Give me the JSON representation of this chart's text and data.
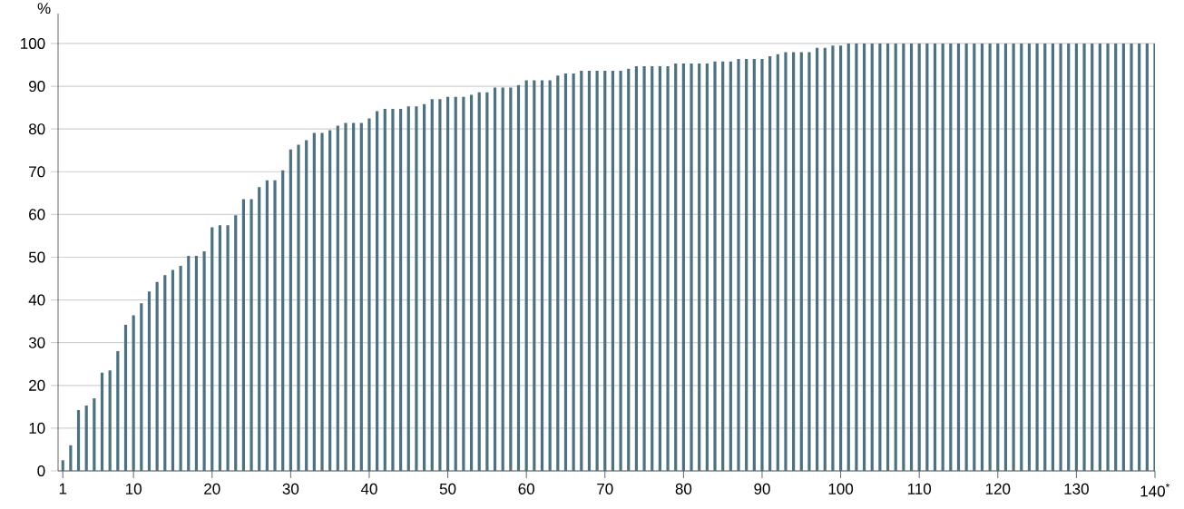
{
  "chart_data": {
    "type": "bar",
    "ylabel": "%",
    "color": "#4a7282",
    "grid": "y",
    "x": [
      1,
      2,
      3,
      4,
      5,
      6,
      7,
      8,
      9,
      10,
      11,
      12,
      13,
      14,
      15,
      16,
      17,
      18,
      19,
      20,
      21,
      22,
      23,
      24,
      25,
      26,
      27,
      28,
      29,
      30,
      31,
      32,
      33,
      34,
      35,
      36,
      37,
      38,
      39,
      40,
      41,
      42,
      43,
      44,
      45,
      46,
      47,
      48,
      49,
      50,
      51,
      52,
      53,
      54,
      55,
      56,
      57,
      58,
      59,
      60,
      61,
      62,
      63,
      64,
      65,
      66,
      67,
      68,
      69,
      70,
      71,
      72,
      73,
      74,
      75,
      76,
      77,
      78,
      79,
      80,
      81,
      82,
      83,
      84,
      85,
      86,
      87,
      88,
      89,
      90,
      91,
      92,
      93,
      94,
      95,
      96,
      97,
      98,
      99,
      100,
      101,
      102,
      103,
      104,
      105,
      106,
      107,
      108,
      109,
      110,
      111,
      112,
      113,
      114,
      115,
      116,
      117,
      118,
      119,
      120,
      121,
      122,
      123,
      124,
      125,
      126,
      127,
      128,
      129,
      130,
      131,
      132,
      133,
      134,
      135,
      136,
      137,
      138,
      139,
      140
    ],
    "values": [
      2.5,
      6,
      14.2,
      15.3,
      17,
      23,
      23.5,
      28,
      34.2,
      36.4,
      39.2,
      42,
      44.2,
      45.8,
      47,
      48,
      50.3,
      50.3,
      51.4,
      57,
      57.5,
      57.5,
      59.8,
      63.6,
      63.6,
      66.4,
      68,
      68,
      70.3,
      75.2,
      76.3,
      77.4,
      79.1,
      79.1,
      79.7,
      80.8,
      81.4,
      81.4,
      81.4,
      82.5,
      84.2,
      84.7,
      84.7,
      84.7,
      85.3,
      85.3,
      85.8,
      87,
      87,
      87.5,
      87.5,
      87.5,
      88,
      88.6,
      88.6,
      89.7,
      89.7,
      89.7,
      90.3,
      91.4,
      91.4,
      91.4,
      91.4,
      92.5,
      93,
      93,
      93.6,
      93.6,
      93.6,
      93.6,
      93.6,
      93.6,
      94.1,
      94.7,
      94.7,
      94.7,
      94.7,
      94.7,
      95.3,
      95.3,
      95.3,
      95.3,
      95.3,
      95.8,
      95.8,
      95.8,
      96.4,
      96.4,
      96.4,
      96.4,
      97,
      97.5,
      98,
      98,
      98,
      98,
      99,
      99,
      99.5,
      99.5,
      100,
      100,
      100,
      100,
      100,
      100,
      100,
      100,
      100,
      100,
      100,
      100,
      100,
      100,
      100,
      100,
      100,
      100,
      100,
      100,
      100,
      100,
      100,
      100,
      100,
      100,
      100,
      100,
      100,
      100,
      100,
      100,
      100,
      100,
      100,
      100,
      100,
      100,
      100,
      100
    ],
    "xlim": [
      0.4,
      140
    ],
    "ylim": [
      0,
      107
    ],
    "xticks": [
      1,
      10,
      20,
      30,
      40,
      50,
      60,
      70,
      80,
      90,
      100,
      110,
      120,
      130,
      {
        "value": 140,
        "label": "140$^{*}$"
      }
    ],
    "yticks": [
      0,
      10,
      20,
      30,
      40,
      50,
      60,
      70,
      80,
      90,
      100
    ]
  }
}
